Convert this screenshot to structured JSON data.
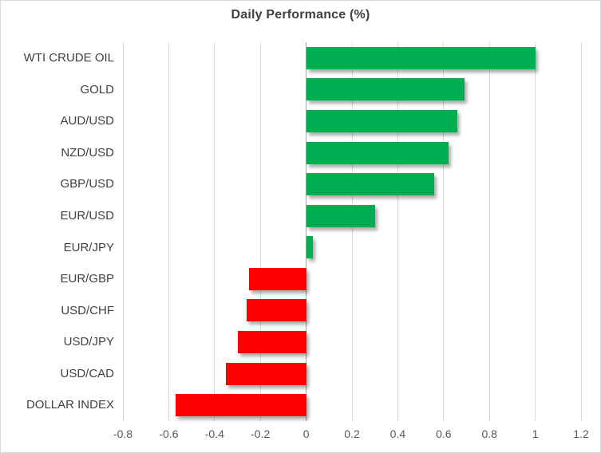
{
  "chart": {
    "title": "Daily Performance (%)"
  },
  "chart_data": {
    "type": "bar",
    "orientation": "horizontal",
    "title": "Daily Performance (%)",
    "xlabel": "",
    "ylabel": "",
    "categories": [
      "WTI CRUDE OIL",
      "GOLD",
      "AUD/USD",
      "NZD/USD",
      "GBP/USD",
      "EUR/USD",
      "EUR/JPY",
      "EUR/GBP",
      "USD/CHF",
      "USD/JPY",
      "USD/CAD",
      "DOLLAR INDEX"
    ],
    "values": [
      1.0,
      0.69,
      0.66,
      0.62,
      0.56,
      0.3,
      0.03,
      -0.25,
      -0.26,
      -0.3,
      -0.35,
      -0.57
    ],
    "xlim": [
      -0.8,
      1.2
    ],
    "xticks": [
      -0.8,
      -0.6,
      -0.4,
      -0.2,
      0,
      0.2,
      0.4,
      0.6,
      0.8,
      1,
      1.2
    ],
    "xtick_labels": [
      "-0.8",
      "-0.6",
      "-0.4",
      "-0.2",
      "0",
      "0.2",
      "0.4",
      "0.6",
      "0.8",
      "1",
      "1.2"
    ],
    "grid": true,
    "legend": false,
    "positive_color": "#00AD51",
    "negative_color": "#FF0000"
  }
}
